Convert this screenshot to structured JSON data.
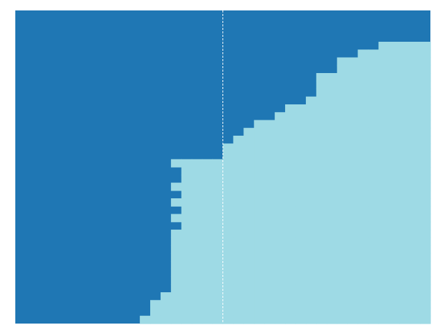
{
  "chart_data": {
    "type": "area",
    "title": "",
    "xlabel": "",
    "ylabel": "",
    "rows": 40,
    "columns": 40,
    "divider_column": 20,
    "row_boundaries": [
      0,
      0,
      0,
      0,
      0,
      0,
      0,
      0,
      0,
      0,
      0,
      0,
      0,
      0,
      0,
      0,
      0,
      0,
      0,
      15,
      16,
      16,
      15,
      16,
      15,
      16,
      15,
      16,
      15,
      15,
      15,
      15,
      15,
      15,
      15,
      15,
      14,
      13,
      13,
      12
    ],
    "right_boundaries": [
      40,
      40,
      40,
      40,
      40,
      40,
      40,
      40,
      40,
      40,
      40,
      40,
      40,
      40,
      40,
      40,
      40,
      40,
      40,
      40,
      40,
      40,
      40,
      40,
      40,
      40,
      40,
      40,
      40,
      40,
      40,
      40,
      40,
      40,
      40,
      40,
      40,
      40,
      40,
      40
    ],
    "series": [
      {
        "values": []
      },
      {
        "values": []
      }
    ],
    "colors": {
      "dark": "#1f77b4",
      "light": "#9edae5",
      "divider": "#ffffff"
    }
  }
}
